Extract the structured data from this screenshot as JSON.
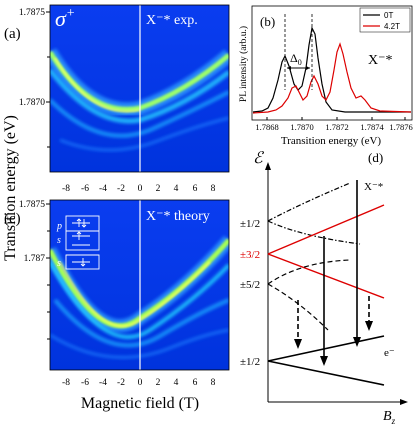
{
  "figure": {
    "y_axis_label": "Transition energy (eV)",
    "x_axis_label": "Magnetic field (T)"
  },
  "panel_a": {
    "tag": "(a)",
    "polarization": "σ",
    "polarization_sup": "+",
    "label": "X⁻* exp.",
    "y_ticks": [
      "1.7875",
      "1.7870"
    ],
    "x_ticks": [
      "-8",
      "-6",
      "-4",
      "-2",
      "0",
      "2",
      "4",
      "6",
      "8"
    ]
  },
  "panel_b": {
    "tag": "(b)",
    "y_label": "PL intensity (arb.u.)",
    "x_label": "Transition energy (eV)",
    "x_ticks": [
      "1.7868",
      "1.7870",
      "1.7872",
      "1.7874",
      "1.7876"
    ],
    "legend": [
      "0T",
      "4.2T"
    ],
    "delta_label": "Δ",
    "delta_sub": "0",
    "species": "X⁻*",
    "colors": {
      "zero_field": "#000000",
      "high_field": "#dd0000"
    }
  },
  "panel_c": {
    "tag": "(c)",
    "label": "X⁻* theory",
    "inset": {
      "p": "p",
      "s1": "s",
      "s2": "s"
    },
    "y_ticks": [
      "1.7875",
      "1.787"
    ],
    "x_ticks": [
      "-8",
      "-6",
      "-4",
      "-2",
      "0",
      "2",
      "4",
      "6",
      "8"
    ]
  },
  "panel_d": {
    "tag": "(d)",
    "energy_symbol": "ℰ",
    "levels": [
      "±1/2",
      "±3/2",
      "±5/2",
      "±1/2"
    ],
    "state_top": "X⁻*",
    "state_bottom": "e⁻",
    "field_label": "B",
    "field_sub": "z",
    "colors": {
      "heavy_hole": "#dd0000"
    }
  }
}
